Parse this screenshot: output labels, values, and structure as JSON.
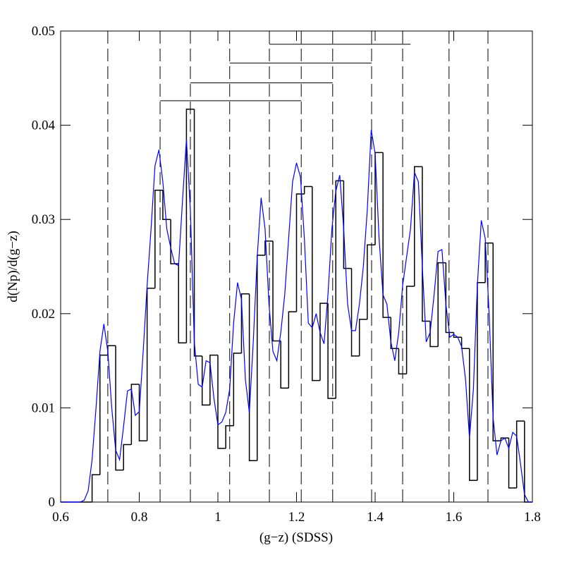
{
  "chart_data": {
    "type": "histogram",
    "xlabel": "(g−z) (SDSS)",
    "ylabel": "d(Np)/d(g−z)",
    "xlim": [
      0.6,
      1.8
    ],
    "ylim": [
      0,
      0.05
    ],
    "xticks": [
      0.6,
      0.8,
      1,
      1.2,
      1.4,
      1.6,
      1.8
    ],
    "yticks": [
      0,
      0.01,
      0.02,
      0.03,
      0.04,
      0.05
    ],
    "color": "#000000",
    "bins": [
      0.6,
      0.62,
      0.64,
      0.66,
      0.68,
      0.7,
      0.72,
      0.74,
      0.76,
      0.78,
      0.8,
      0.82,
      0.84,
      0.86,
      0.88,
      0.9,
      0.92,
      0.94,
      0.96,
      0.98,
      1.0,
      1.02,
      1.04,
      1.06,
      1.08,
      1.1,
      1.12,
      1.14,
      1.16,
      1.18,
      1.2,
      1.22,
      1.24,
      1.26,
      1.28,
      1.3,
      1.32,
      1.34,
      1.36,
      1.38,
      1.4,
      1.42,
      1.44,
      1.46,
      1.48,
      1.5,
      1.52,
      1.54,
      1.56,
      1.58,
      1.6,
      1.62,
      1.64,
      1.66,
      1.68,
      1.7,
      1.72,
      1.74,
      1.76,
      1.78,
      1.8
    ],
    "values": [
      0,
      0,
      0,
      0,
      0.0029,
      0.0156,
      0.0166,
      0.0034,
      0.0061,
      0.0125,
      0.0065,
      0.0227,
      0.0331,
      0.03,
      0.0253,
      0.0169,
      0.0417,
      0.0155,
      0.0103,
      0.0156,
      0.0057,
      0.0081,
      0.0158,
      0.0221,
      0.0044,
      0.0262,
      0.0277,
      0.0171,
      0.0121,
      0.0202,
      0.0327,
      0.0335,
      0.0129,
      0.0211,
      0.011,
      0.0341,
      0.0248,
      0.0155,
      0.0194,
      0.0273,
      0.0371,
      0.0196,
      0.0163,
      0.0136,
      0.0229,
      0.0356,
      0.0192,
      0.0165,
      0.0254,
      0.018,
      0.0175,
      0.0163,
      0.0023,
      0.0233,
      0.0275,
      0.0065,
      0.0068,
      0.0015,
      0.0086,
      0
    ],
    "line": {
      "color": "#0000ff",
      "x": [
        0.6,
        0.65,
        0.66,
        0.67,
        0.68,
        0.69,
        0.7,
        0.71,
        0.72,
        0.73,
        0.74,
        0.75,
        0.76,
        0.77,
        0.78,
        0.79,
        0.8,
        0.81,
        0.82,
        0.83,
        0.84,
        0.85,
        0.86,
        0.87,
        0.88,
        0.89,
        0.9,
        0.91,
        0.92,
        0.93,
        0.94,
        0.95,
        0.96,
        0.97,
        0.98,
        0.99,
        1.0,
        1.01,
        1.02,
        1.03,
        1.04,
        1.05,
        1.06,
        1.07,
        1.08,
        1.09,
        1.1,
        1.11,
        1.12,
        1.13,
        1.14,
        1.15,
        1.16,
        1.17,
        1.18,
        1.19,
        1.2,
        1.21,
        1.22,
        1.23,
        1.24,
        1.25,
        1.26,
        1.27,
        1.28,
        1.29,
        1.3,
        1.31,
        1.32,
        1.33,
        1.34,
        1.35,
        1.36,
        1.37,
        1.38,
        1.39,
        1.4,
        1.41,
        1.42,
        1.43,
        1.44,
        1.45,
        1.46,
        1.47,
        1.48,
        1.49,
        1.5,
        1.51,
        1.52,
        1.53,
        1.54,
        1.55,
        1.56,
        1.57,
        1.58,
        1.59,
        1.6,
        1.61,
        1.62,
        1.63,
        1.64,
        1.65,
        1.66,
        1.67,
        1.68,
        1.69,
        1.7,
        1.71,
        1.72,
        1.73,
        1.74,
        1.75,
        1.76,
        1.77,
        1.78,
        1.79,
        1.8
      ],
      "values": [
        0,
        0,
        0.0002,
        0.0012,
        0.0045,
        0.01,
        0.016,
        0.0189,
        0.016,
        0.01,
        0.0055,
        0.0045,
        0.008,
        0.0118,
        0.012,
        0.0092,
        0.0096,
        0.016,
        0.023,
        0.029,
        0.0357,
        0.0374,
        0.034,
        0.029,
        0.027,
        0.0253,
        0.0251,
        0.032,
        0.0385,
        0.031,
        0.017,
        0.0125,
        0.0122,
        0.015,
        0.0148,
        0.011,
        0.0082,
        0.0085,
        0.0095,
        0.012,
        0.019,
        0.0233,
        0.0215,
        0.013,
        0.0095,
        0.017,
        0.026,
        0.0323,
        0.029,
        0.021,
        0.016,
        0.015,
        0.018,
        0.022,
        0.028,
        0.034,
        0.036,
        0.0345,
        0.028,
        0.019,
        0.0185,
        0.02,
        0.018,
        0.0168,
        0.022,
        0.029,
        0.033,
        0.0347,
        0.029,
        0.021,
        0.0182,
        0.0182,
        0.021,
        0.025,
        0.031,
        0.0395,
        0.037,
        0.028,
        0.022,
        0.021,
        0.017,
        0.015,
        0.018,
        0.023,
        0.026,
        0.029,
        0.035,
        0.034,
        0.025,
        0.017,
        0.018,
        0.022,
        0.0266,
        0.0268,
        0.021,
        0.0175,
        0.0178,
        0.0175,
        0.0165,
        0.013,
        0.0068,
        0.012,
        0.023,
        0.0299,
        0.028,
        0.02,
        0.009,
        0.005,
        0.0065,
        0.0068,
        0.0057,
        0.0074,
        0.007,
        0.004,
        0.0008,
        0,
        0
      ]
    },
    "vlines": [
      0.72,
      0.853,
      0.93,
      1.03,
      1.131,
      1.212,
      1.292,
      1.391,
      1.47,
      1.588,
      1.687
    ],
    "ranges": [
      {
        "y": 0.0426,
        "x": [
          0.853,
          1.212
        ]
      },
      {
        "y": 0.0445,
        "x": [
          0.93,
          1.292
        ]
      },
      {
        "y": 0.0466,
        "x": [
          1.03,
          1.391
        ]
      },
      {
        "y": 0.0486,
        "x": [
          1.131,
          1.49
        ]
      }
    ]
  }
}
